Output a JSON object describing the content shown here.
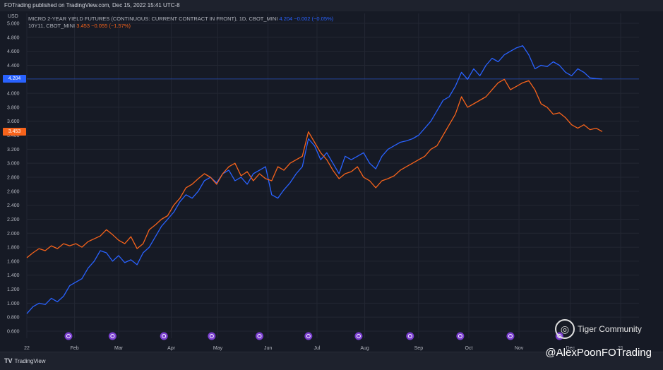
{
  "header": {
    "published": "FOTrading published on TradingView.com, Dec 15, 2022 15:41 UTC-8"
  },
  "legend": {
    "series1_name": "MICRO 2-YEAR YIELD FUTURES (CONTINUOUS: CURRENT CONTRACT IN FRONT), 1D, CBOT_MINI",
    "series1_value": "4.204 −0.002 (−0.05%)",
    "series2_name": "10Y11, CBOT_MINI",
    "series2_value": "3.453 −0.055 (−1.57%)"
  },
  "axis": {
    "currency": "USD",
    "last_blue": "4.204",
    "last_orange": "3.453"
  },
  "footer": {
    "brand": "TradingView",
    "watermark": "@AlexPoonFOTrading",
    "community": "Tiger Community"
  },
  "colors": {
    "blue": "#2962ff",
    "orange": "#f7631b",
    "background": "#161a25",
    "grid": "#232733",
    "event_icon": "#7b3fd1"
  },
  "chart_data": {
    "type": "line",
    "ylim": [
      0.6,
      5.0
    ],
    "yticks": [
      "0.600",
      "0.800",
      "1.000",
      "1.200",
      "1.400",
      "1.600",
      "1.800",
      "2.000",
      "2.200",
      "2.400",
      "2.600",
      "2.800",
      "3.000",
      "3.200",
      "3.400",
      "3.600",
      "3.800",
      "4.000",
      "4.200",
      "4.400",
      "4.600",
      "4.800",
      "5.000"
    ],
    "x_domain": [
      0,
      50
    ],
    "xticks": [
      {
        "label": "22",
        "x": 0
      },
      {
        "label": "Feb",
        "x": 3.9
      },
      {
        "label": "Mar",
        "x": 7.5
      },
      {
        "label": "Apr",
        "x": 11.8
      },
      {
        "label": "May",
        "x": 15.6
      },
      {
        "label": "Jun",
        "x": 19.7
      },
      {
        "label": "Jul",
        "x": 23.7
      },
      {
        "label": "Aug",
        "x": 27.6
      },
      {
        "label": "Sep",
        "x": 32.0
      },
      {
        "label": "Oct",
        "x": 36.1
      },
      {
        "label": "Nov",
        "x": 40.2
      },
      {
        "label": "Dec",
        "x": 44.4
      },
      {
        "label": "21",
        "x": 48.5
      }
    ],
    "events_x": [
      3.4,
      7.0,
      11.2,
      15.1,
      19.0,
      23.0,
      27.1,
      31.3,
      35.4,
      39.5,
      43.5
    ],
    "series": [
      {
        "name": "MICRO 2-YEAR YIELD FUTURES (CONTINUOUS: CURRENT CONTRACT IN FRONT)",
        "color": "#2962ff",
        "points": [
          [
            0,
            0.85
          ],
          [
            0.5,
            0.95
          ],
          [
            1,
            1.0
          ],
          [
            1.5,
            0.98
          ],
          [
            2,
            1.07
          ],
          [
            2.5,
            1.02
          ],
          [
            3,
            1.1
          ],
          [
            3.5,
            1.25
          ],
          [
            4,
            1.3
          ],
          [
            4.5,
            1.35
          ],
          [
            5,
            1.5
          ],
          [
            5.5,
            1.6
          ],
          [
            6,
            1.75
          ],
          [
            6.5,
            1.72
          ],
          [
            7,
            1.6
          ],
          [
            7.5,
            1.68
          ],
          [
            8,
            1.58
          ],
          [
            8.5,
            1.62
          ],
          [
            9,
            1.55
          ],
          [
            9.5,
            1.72
          ],
          [
            10,
            1.8
          ],
          [
            10.5,
            1.95
          ],
          [
            11,
            2.1
          ],
          [
            11.5,
            2.2
          ],
          [
            12,
            2.3
          ],
          [
            12.5,
            2.45
          ],
          [
            13,
            2.55
          ],
          [
            13.5,
            2.5
          ],
          [
            14,
            2.6
          ],
          [
            14.5,
            2.75
          ],
          [
            15,
            2.8
          ],
          [
            15.5,
            2.72
          ],
          [
            16,
            2.85
          ],
          [
            16.5,
            2.9
          ],
          [
            17,
            2.75
          ],
          [
            17.5,
            2.8
          ],
          [
            18,
            2.7
          ],
          [
            18.5,
            2.85
          ],
          [
            19,
            2.9
          ],
          [
            19.5,
            2.95
          ],
          [
            20,
            2.55
          ],
          [
            20.5,
            2.5
          ],
          [
            21,
            2.62
          ],
          [
            21.5,
            2.72
          ],
          [
            22,
            2.85
          ],
          [
            22.5,
            2.95
          ],
          [
            23,
            3.35
          ],
          [
            23.5,
            3.25
          ],
          [
            24,
            3.05
          ],
          [
            24.5,
            3.15
          ],
          [
            25,
            3.0
          ],
          [
            25.5,
            2.85
          ],
          [
            26,
            3.1
          ],
          [
            26.5,
            3.05
          ],
          [
            27,
            3.1
          ],
          [
            27.5,
            3.15
          ],
          [
            28,
            3.0
          ],
          [
            28.5,
            2.92
          ],
          [
            29,
            3.1
          ],
          [
            29.5,
            3.2
          ],
          [
            30,
            3.25
          ],
          [
            30.5,
            3.3
          ],
          [
            31,
            3.32
          ],
          [
            31.5,
            3.35
          ],
          [
            32,
            3.4
          ],
          [
            32.5,
            3.5
          ],
          [
            33,
            3.6
          ],
          [
            33.5,
            3.75
          ],
          [
            34,
            3.9
          ],
          [
            34.5,
            3.95
          ],
          [
            35,
            4.1
          ],
          [
            35.5,
            4.3
          ],
          [
            36,
            4.2
          ],
          [
            36.5,
            4.35
          ],
          [
            37,
            4.25
          ],
          [
            37.5,
            4.4
          ],
          [
            38,
            4.5
          ],
          [
            38.5,
            4.45
          ],
          [
            39,
            4.55
          ],
          [
            39.5,
            4.6
          ],
          [
            40,
            4.65
          ],
          [
            40.5,
            4.68
          ],
          [
            41,
            4.55
          ],
          [
            41.5,
            4.35
          ],
          [
            42,
            4.4
          ],
          [
            42.5,
            4.38
          ],
          [
            43,
            4.45
          ],
          [
            43.5,
            4.4
          ],
          [
            44,
            4.3
          ],
          [
            44.5,
            4.25
          ],
          [
            45,
            4.35
          ],
          [
            45.5,
            4.3
          ],
          [
            46,
            4.22
          ],
          [
            46.5,
            4.21
          ],
          [
            47,
            4.204
          ]
        ]
      },
      {
        "name": "10Y11",
        "color": "#f7631b",
        "points": [
          [
            0,
            1.65
          ],
          [
            0.5,
            1.72
          ],
          [
            1,
            1.78
          ],
          [
            1.5,
            1.75
          ],
          [
            2,
            1.82
          ],
          [
            2.5,
            1.78
          ],
          [
            3,
            1.85
          ],
          [
            3.5,
            1.82
          ],
          [
            4,
            1.85
          ],
          [
            4.5,
            1.8
          ],
          [
            5,
            1.88
          ],
          [
            5.5,
            1.92
          ],
          [
            6,
            1.96
          ],
          [
            6.5,
            2.05
          ],
          [
            7,
            1.98
          ],
          [
            7.5,
            1.9
          ],
          [
            8,
            1.85
          ],
          [
            8.5,
            1.95
          ],
          [
            9,
            1.78
          ],
          [
            9.5,
            1.85
          ],
          [
            10,
            2.05
          ],
          [
            10.5,
            2.12
          ],
          [
            11,
            2.2
          ],
          [
            11.5,
            2.25
          ],
          [
            12,
            2.4
          ],
          [
            12.5,
            2.5
          ],
          [
            13,
            2.65
          ],
          [
            13.5,
            2.7
          ],
          [
            14,
            2.78
          ],
          [
            14.5,
            2.85
          ],
          [
            15,
            2.8
          ],
          [
            15.5,
            2.7
          ],
          [
            16,
            2.85
          ],
          [
            16.5,
            2.95
          ],
          [
            17,
            3.0
          ],
          [
            17.5,
            2.82
          ],
          [
            18,
            2.88
          ],
          [
            18.5,
            2.75
          ],
          [
            19,
            2.85
          ],
          [
            19.5,
            2.78
          ],
          [
            20,
            2.75
          ],
          [
            20.5,
            2.95
          ],
          [
            21,
            2.9
          ],
          [
            21.5,
            3.0
          ],
          [
            22,
            3.05
          ],
          [
            22.5,
            3.1
          ],
          [
            23,
            3.45
          ],
          [
            23.5,
            3.3
          ],
          [
            24,
            3.15
          ],
          [
            24.5,
            3.05
          ],
          [
            25,
            2.9
          ],
          [
            25.5,
            2.78
          ],
          [
            26,
            2.85
          ],
          [
            26.5,
            2.88
          ],
          [
            27,
            2.95
          ],
          [
            27.5,
            2.8
          ],
          [
            28,
            2.75
          ],
          [
            28.5,
            2.65
          ],
          [
            29,
            2.75
          ],
          [
            29.5,
            2.78
          ],
          [
            30,
            2.82
          ],
          [
            30.5,
            2.9
          ],
          [
            31,
            2.95
          ],
          [
            31.5,
            3.0
          ],
          [
            32,
            3.05
          ],
          [
            32.5,
            3.1
          ],
          [
            33,
            3.2
          ],
          [
            33.5,
            3.25
          ],
          [
            34,
            3.4
          ],
          [
            34.5,
            3.55
          ],
          [
            35,
            3.7
          ],
          [
            35.5,
            3.95
          ],
          [
            36,
            3.8
          ],
          [
            36.5,
            3.85
          ],
          [
            37,
            3.9
          ],
          [
            37.5,
            3.95
          ],
          [
            38,
            4.05
          ],
          [
            38.5,
            4.15
          ],
          [
            39,
            4.2
          ],
          [
            39.5,
            4.05
          ],
          [
            40,
            4.1
          ],
          [
            40.5,
            4.15
          ],
          [
            41,
            4.18
          ],
          [
            41.5,
            4.05
          ],
          [
            42,
            3.85
          ],
          [
            42.5,
            3.8
          ],
          [
            43,
            3.7
          ],
          [
            43.5,
            3.72
          ],
          [
            44,
            3.65
          ],
          [
            44.5,
            3.55
          ],
          [
            45,
            3.5
          ],
          [
            45.5,
            3.55
          ],
          [
            46,
            3.48
          ],
          [
            46.5,
            3.5
          ],
          [
            47,
            3.453
          ]
        ]
      }
    ]
  }
}
